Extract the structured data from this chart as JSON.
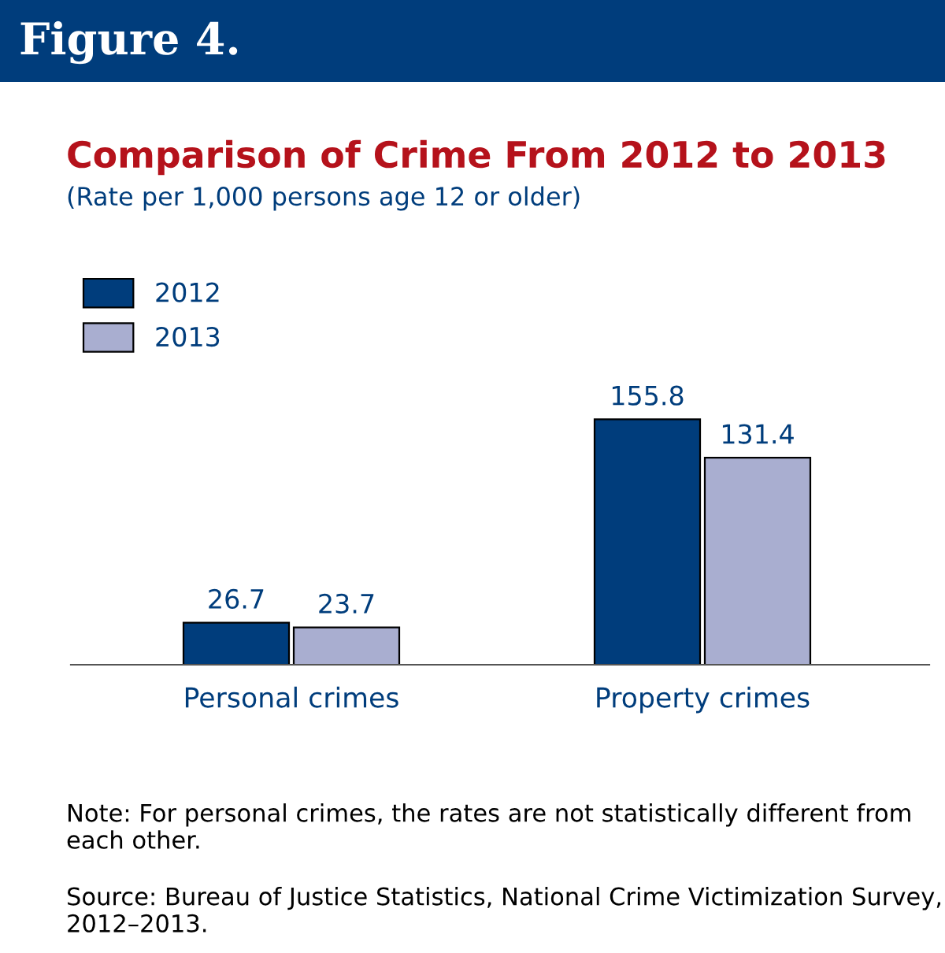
{
  "chart_data": {
    "type": "bar",
    "title": "Comparison of Crime From 2012 to 2013",
    "subtitle": "(Rate per 1,000 persons age 12 or older)",
    "categories": [
      "Personal crimes",
      "Property crimes"
    ],
    "series": [
      {
        "name": "2012",
        "color": "#003d7c",
        "values": [
          26.7,
          155.8
        ]
      },
      {
        "name": "2013",
        "color": "#a9aed0",
        "values": [
          23.7,
          131.4
        ]
      }
    ],
    "data_labels": true,
    "legend": "top left",
    "grid": false,
    "annotations": [
      "Figure 4.",
      "Note: For personal crimes, the rates are not statistically different from each other.",
      "Source: Bureau of Justice Statistics, National Crime Victimization Survey, 2012–2013."
    ]
  }
}
